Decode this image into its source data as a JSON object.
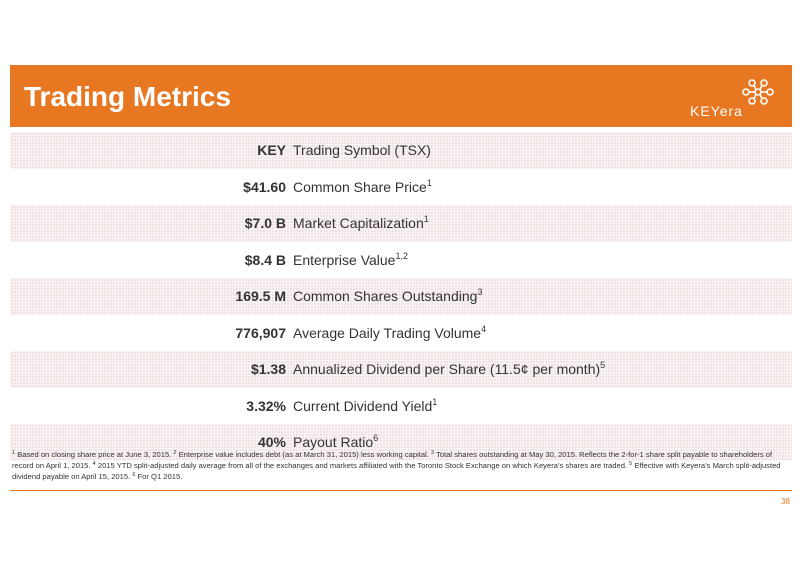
{
  "header": {
    "title": "Trading Metrics",
    "logo_text": "KEYera",
    "accent_color": "#e87722"
  },
  "rows": [
    {
      "value": "KEY",
      "label": "Trading Symbol (TSX)",
      "sup": "",
      "shaded": true
    },
    {
      "value": "$41.60",
      "label": "Common Share Price",
      "sup": "1",
      "shaded": false
    },
    {
      "value": "$7.0 B",
      "label": "Market Capitalization",
      "sup": "1",
      "shaded": true
    },
    {
      "value": "$8.4 B",
      "label": "Enterprise Value",
      "sup": "1,2",
      "shaded": false
    },
    {
      "value": "169.5 M",
      "label": "Common Shares Outstanding",
      "sup": "3",
      "shaded": true
    },
    {
      "value": "776,907",
      "label": "Average Daily Trading Volume",
      "sup": "4",
      "shaded": false
    },
    {
      "value": "$1.38",
      "label": "Annualized Dividend per Share (11.5¢ per month)",
      "sup": "5",
      "shaded": true
    },
    {
      "value": "3.32%",
      "label": "Current Dividend Yield",
      "sup": "1",
      "shaded": false
    },
    {
      "value": "40%",
      "label": "Payout Ratio",
      "sup": "6",
      "shaded": true
    }
  ],
  "footnotes": [
    {
      "num": "1",
      "text": "Based on closing share price at June 3, 2015."
    },
    {
      "num": "2",
      "text": "Enterprise value includes debt (as at March 31, 2015) less working capital."
    },
    {
      "num": "3",
      "text": "Total shares outstanding at May 30, 2015. Reflects the 2-for-1 share split payable to shareholders of record on April 1, 2015."
    },
    {
      "num": "4",
      "text": "2015 YTD split-adjusted daily average from all of the exchanges and markets affiliated with the Toronto Stock Exchange on which Keyera’s shares are traded."
    },
    {
      "num": "5",
      "text": "Effective with Keyera’s March split-adjusted dividend payable on April 15, 2015."
    },
    {
      "num": "6",
      "text": "For Q1 2015."
    }
  ],
  "page_number": "38"
}
